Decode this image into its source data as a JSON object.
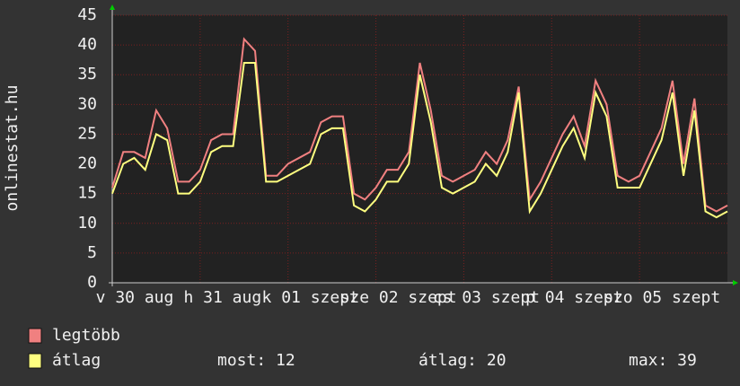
{
  "chart_data": {
    "type": "line",
    "y_label": "onlinestat.hu",
    "x": [
      0,
      3,
      6,
      9,
      12,
      15,
      18,
      21,
      24,
      27,
      30,
      33,
      36,
      39,
      42,
      45,
      48,
      51,
      54,
      57,
      60,
      63,
      66,
      69,
      72,
      75,
      78,
      81,
      84,
      87,
      90,
      93,
      96,
      99,
      102,
      105,
      108,
      111,
      114,
      117,
      120,
      123,
      126,
      129,
      132,
      135,
      138,
      141,
      144,
      147,
      150,
      153,
      156,
      159,
      162,
      165,
      168
    ],
    "series": [
      {
        "name": "legtöbb",
        "color": "#f08080",
        "values": [
          16,
          22,
          22,
          21,
          29,
          26,
          17,
          17,
          19,
          24,
          25,
          25,
          41,
          39,
          18,
          18,
          20,
          21,
          22,
          27,
          28,
          28,
          15,
          14,
          16,
          19,
          19,
          22,
          37,
          29,
          18,
          17,
          18,
          19,
          22,
          20,
          24,
          33,
          14,
          17,
          21,
          25,
          28,
          23,
          34,
          30,
          18,
          17,
          18,
          22,
          26,
          34,
          20,
          31,
          13,
          12,
          13
        ]
      },
      {
        "name": "átlag",
        "color": "#ffff80",
        "values": [
          15,
          20,
          21,
          19,
          25,
          24,
          15,
          15,
          17,
          22,
          23,
          23,
          37,
          37,
          17,
          17,
          18,
          19,
          20,
          25,
          26,
          26,
          13,
          12,
          14,
          17,
          17,
          20,
          35,
          27,
          16,
          15,
          16,
          17,
          20,
          18,
          22,
          32,
          12,
          15,
          19,
          23,
          26,
          21,
          32,
          28,
          16,
          16,
          16,
          20,
          24,
          32,
          18,
          29,
          12,
          11,
          12
        ]
      }
    ],
    "xlim": [
      0,
      168
    ],
    "xticks": [
      {
        "value": 0,
        "label": "v 30 aug"
      },
      {
        "value": 24,
        "label": "h 31 aug"
      },
      {
        "value": 48,
        "label": "k 01 szept"
      },
      {
        "value": 72,
        "label": "sze 02 szept"
      },
      {
        "value": 96,
        "label": "cs 03 szept"
      },
      {
        "value": 120,
        "label": "p 04 szept"
      },
      {
        "value": 144,
        "label": "szo 05 szept"
      }
    ],
    "ylim": [
      0,
      45
    ],
    "yticks": [
      0,
      5,
      10,
      15,
      20,
      25,
      30,
      35,
      40,
      45
    ],
    "grid": true,
    "stats": [
      {
        "label": "most: 12"
      },
      {
        "label": "átlag: 20"
      },
      {
        "label": "max: 39"
      }
    ]
  }
}
